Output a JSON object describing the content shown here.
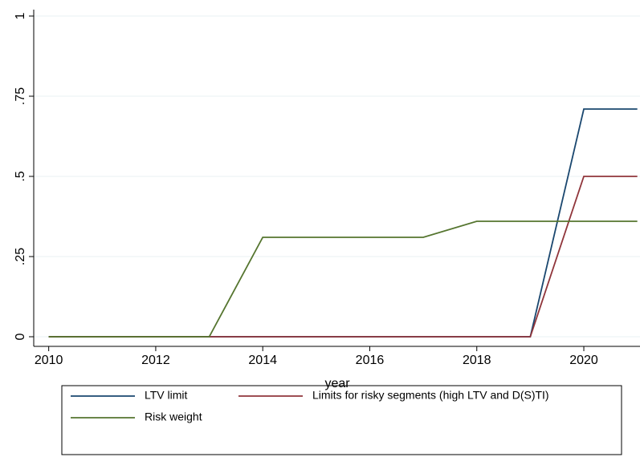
{
  "chart_data": {
    "type": "line",
    "x_label": "year",
    "x": [
      2010,
      2011,
      2012,
      2013,
      2014,
      2015,
      2016,
      2017,
      2018,
      2019,
      2020,
      2021
    ],
    "series": [
      {
        "name": "LTV limit",
        "color": "#1a476f",
        "values": [
          0,
          0,
          0,
          0,
          0,
          0,
          0,
          0,
          0,
          0,
          0.71,
          0.71
        ]
      },
      {
        "name": "Limits for risky segments (high LTV and D(S)TI)",
        "color": "#90353b",
        "values": [
          0,
          0,
          0,
          0,
          0,
          0,
          0,
          0,
          0,
          0,
          0.5,
          0.5
        ]
      },
      {
        "name": "Risk weight",
        "color": "#55752f",
        "values": [
          0,
          0,
          0,
          0,
          0.31,
          0.31,
          0.31,
          0.31,
          0.36,
          0.36,
          0.36,
          0.36
        ]
      }
    ],
    "xlim": [
      2009.72,
      2021.05
    ],
    "xticks": [
      2010,
      2012,
      2014,
      2016,
      2018,
      2020
    ],
    "ylim": [
      -0.03,
      1.02
    ],
    "yticks": [
      0,
      {
        "value": 0.25,
        "label": ".25"
      },
      {
        "value": 0.5,
        "label": ".5"
      },
      {
        "value": 0.75,
        "label": ".75"
      },
      1
    ],
    "grid": true
  }
}
